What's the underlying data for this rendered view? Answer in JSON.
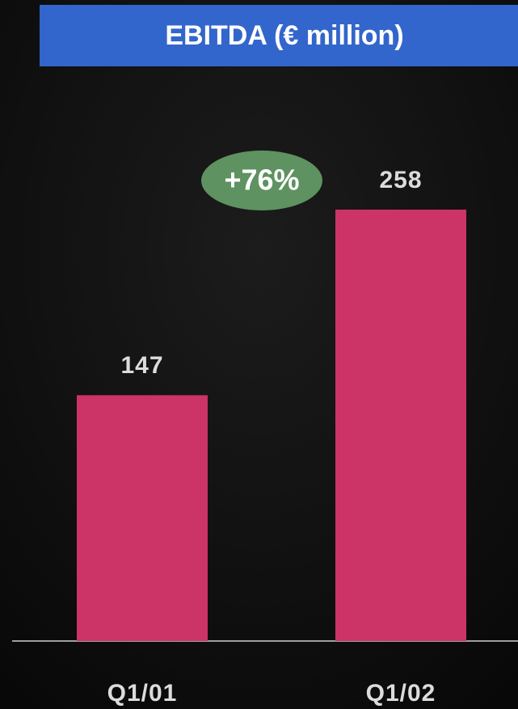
{
  "chart_data": {
    "type": "bar",
    "title": "EBITDA (€ million)",
    "categories": [
      "Q1/01",
      "Q1/02"
    ],
    "values": [
      147,
      258
    ],
    "color": "#cc3366",
    "annotation": "+76%",
    "annotation_color": "#5e9260",
    "title_color": "#3366cc"
  }
}
